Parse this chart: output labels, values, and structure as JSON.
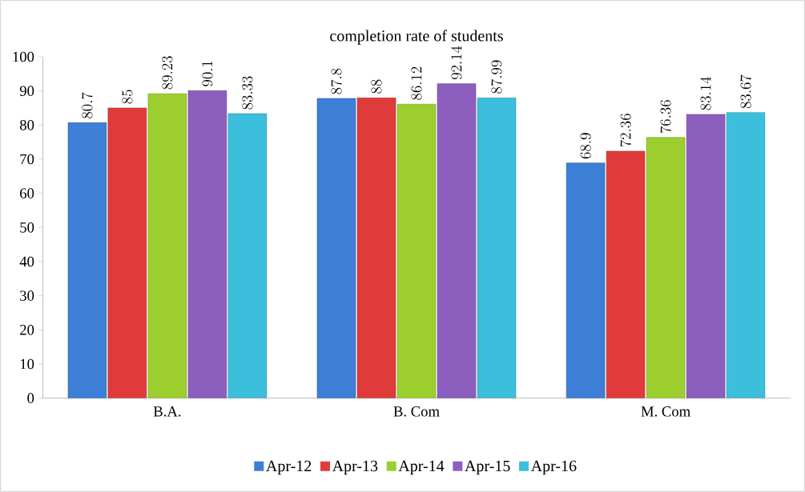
{
  "chart_data": {
    "type": "bar",
    "title": "completion rate of students",
    "categories": [
      "B.A.",
      "B. Com",
      "M. Com"
    ],
    "series": [
      {
        "name": "Apr-12",
        "color": "#3d7ed6",
        "values": [
          80.7,
          87.8,
          68.9
        ]
      },
      {
        "name": "Apr-13",
        "color": "#e03b3b",
        "values": [
          85,
          88,
          72.36
        ]
      },
      {
        "name": "Apr-14",
        "color": "#9ccf2e",
        "values": [
          89.23,
          86.12,
          76.36
        ]
      },
      {
        "name": "Apr-15",
        "color": "#8c5fbf",
        "values": [
          90.1,
          92.14,
          83.14
        ]
      },
      {
        "name": "Apr-16",
        "color": "#3cbfdc",
        "values": [
          83.33,
          87.99,
          83.67
        ]
      }
    ],
    "ylim": [
      0,
      100
    ],
    "yticks": [
      0,
      10,
      20,
      30,
      40,
      50,
      60,
      70,
      80,
      90,
      100
    ],
    "data_labels": true,
    "legend": "bottom",
    "grid": false
  }
}
